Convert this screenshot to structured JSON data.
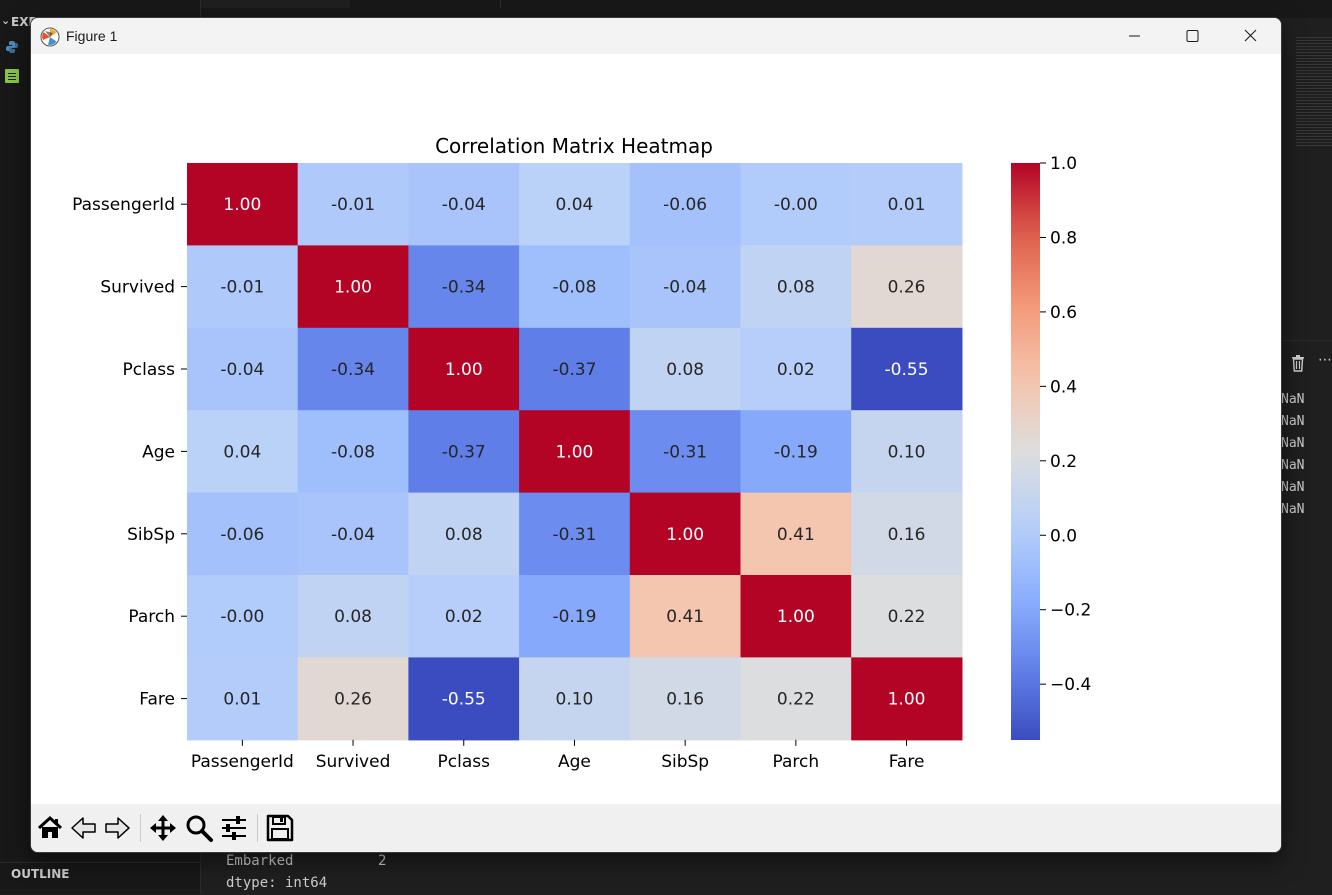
{
  "window": {
    "title": "Figure 1"
  },
  "vscode": {
    "explorer_label": "EXP",
    "outline_label": "OUTLINE",
    "nan_values": [
      "NaN",
      "NaN",
      "NaN",
      "NaN",
      "NaN",
      "NaN"
    ],
    "terminal_lines": [
      {
        "text": "Embarked",
        "count": "2"
      },
      {
        "text": "dtype: int64",
        "count": ""
      }
    ]
  },
  "toolbar": {
    "tools": [
      "home-icon",
      "back-icon",
      "forward-icon",
      "pan-icon",
      "zoom-icon",
      "configure-subplots-icon",
      "save-icon"
    ]
  },
  "chart_data": {
    "type": "heatmap",
    "title": "Correlation Matrix Heatmap",
    "rows": [
      "PassengerId",
      "Survived",
      "Pclass",
      "Age",
      "SibSp",
      "Parch",
      "Fare"
    ],
    "columns": [
      "PassengerId",
      "Survived",
      "Pclass",
      "Age",
      "SibSp",
      "Parch",
      "Fare"
    ],
    "values": [
      [
        1.0,
        -0.01,
        -0.04,
        0.04,
        -0.06,
        -0.0,
        0.01
      ],
      [
        -0.01,
        1.0,
        -0.34,
        -0.08,
        -0.04,
        0.08,
        0.26
      ],
      [
        -0.04,
        -0.34,
        1.0,
        -0.37,
        0.08,
        0.02,
        -0.55
      ],
      [
        0.04,
        -0.08,
        -0.37,
        1.0,
        -0.31,
        -0.19,
        0.1
      ],
      [
        -0.06,
        -0.04,
        0.08,
        -0.31,
        1.0,
        0.41,
        0.16
      ],
      [
        -0.0,
        0.08,
        0.02,
        -0.19,
        0.41,
        1.0,
        0.22
      ],
      [
        0.01,
        0.26,
        -0.55,
        0.1,
        0.16,
        0.22,
        1.0
      ]
    ],
    "annotation_format": "0.00",
    "colormap": "coolwarm",
    "vmin": -0.55,
    "vmax": 1.0,
    "colorbar_ticks": [
      1.0,
      0.8,
      0.6,
      0.4,
      0.2,
      0.0,
      -0.2,
      -0.4
    ],
    "colorbar_tick_labels": [
      "1.0",
      "0.8",
      "0.6",
      "0.4",
      "0.2",
      "0.0",
      "−0.2",
      "−0.4"
    ],
    "colors": {
      "low": "#3b4cc0",
      "mid": "#dddddd",
      "high": "#b40426"
    }
  }
}
